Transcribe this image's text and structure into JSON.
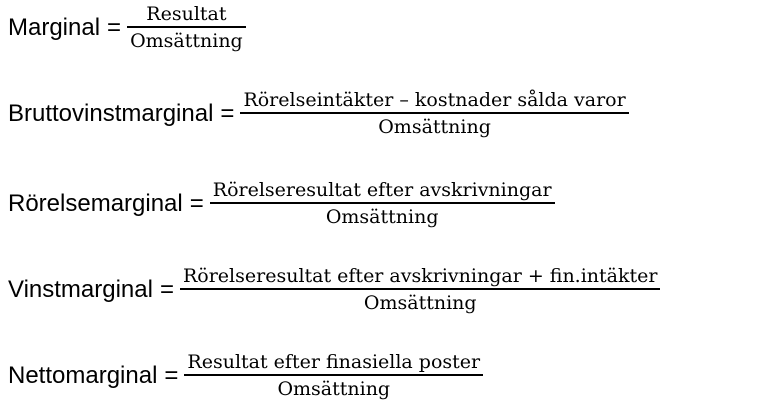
{
  "formulas": [
    {
      "lhs": "Marginal",
      "eq": "=",
      "numerator": "Resultat",
      "denominator": "Omsättning"
    },
    {
      "lhs": "Bruttovinstmarginal",
      "eq": "=",
      "numerator": "Rörelseintäkter – kostnader sålda varor",
      "denominator": "Omsättning"
    },
    {
      "lhs": "Rörelsemarginal",
      "eq": "=",
      "numerator": "Rörelseresultat efter avskrivningar",
      "denominator": "Omsättning"
    },
    {
      "lhs": "Vinstmarginal",
      "eq": "=",
      "numerator": "Rörelseresultat efter avskrivningar + fin.intäkter",
      "denominator": "Omsättning"
    },
    {
      "lhs": "Nettomarginal",
      "eq": "=",
      "numerator": "Resultat efter finasiella poster",
      "denominator": "Omsättning"
    }
  ]
}
